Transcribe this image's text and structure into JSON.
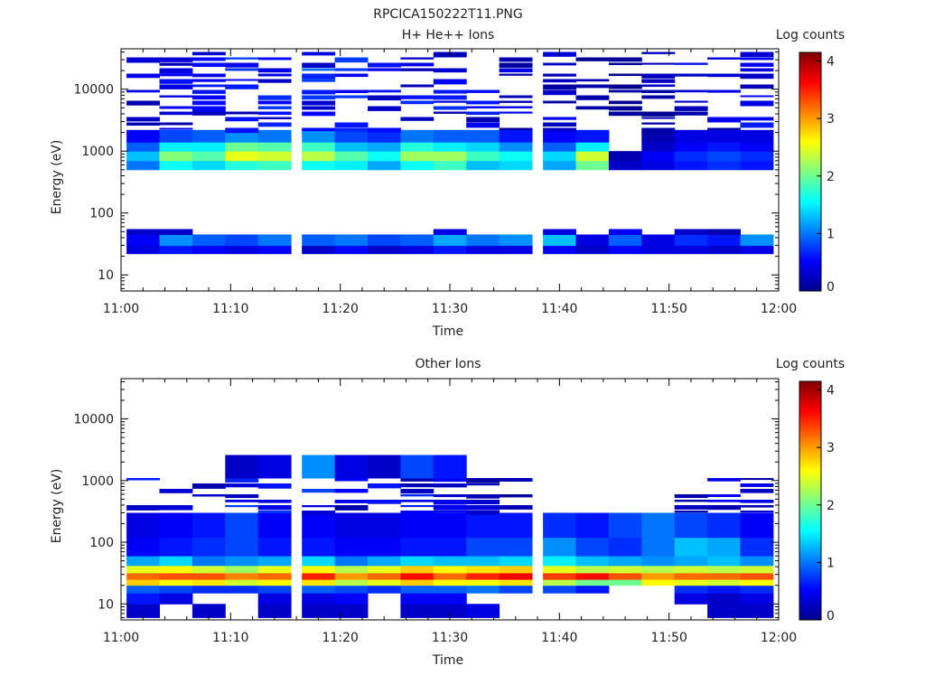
{
  "figure_title": "RPCICA150222T11.PNG",
  "chart_data": [
    {
      "type": "heatmap",
      "title": "H+ He++ Ions",
      "xlabel": "Time",
      "ylabel": "Energy (eV)",
      "colorbar_label": "Log counts",
      "colorbar_ticks": [
        "0",
        "1",
        "2",
        "3",
        "4"
      ],
      "colorbar_range": [
        0,
        4.15
      ],
      "y_scale": "log",
      "ylim": [
        5.5,
        45000
      ],
      "xlim": [
        "11:00",
        "12:00"
      ],
      "x_ticks": [
        "11:00",
        "11:10",
        "11:20",
        "11:30",
        "11:40",
        "11:50",
        "12:00"
      ],
      "y_ticks": [
        "10",
        "100",
        "1000",
        "10000"
      ],
      "time_columns": [
        "11:02",
        "11:05",
        "11:08",
        "11:11",
        "11:14",
        "11:18",
        "11:21",
        "11:24",
        "11:27",
        "11:30",
        "11:33",
        "11:36",
        "11:40",
        "11:43",
        "11:46",
        "11:49",
        "11:52",
        "11:55",
        "11:58"
      ],
      "energy_bands": [
        {
          "energy_range": [
            22,
            30
          ],
          "values": [
            0.4,
            0.6,
            0.5,
            0.4,
            0.5,
            0.3,
            0.5,
            0.3,
            0.4,
            0.6,
            0.4,
            0.4,
            0.5,
            0.3,
            0.5,
            0.4,
            0.4,
            0.3,
            0.4
          ]
        },
        {
          "energy_range": [
            30,
            45
          ],
          "values": [
            0.5,
            1.1,
            0.9,
            0.8,
            1.0,
            0.9,
            1.0,
            0.8,
            0.9,
            1.2,
            1.0,
            1.1,
            1.3,
            0.4,
            0.9,
            0.4,
            0.7,
            0.6,
            1.1
          ]
        },
        {
          "energy_range": [
            45,
            55
          ],
          "values": [
            0.3,
            0.3,
            0.0,
            0.0,
            0.0,
            0.0,
            0.0,
            0.0,
            0.0,
            0.4,
            0.0,
            0.0,
            0.4,
            0.0,
            0.5,
            0.0,
            0.3,
            0.2,
            0.0
          ]
        },
        {
          "energy_range": [
            500,
            700
          ],
          "values": [
            1.0,
            1.6,
            1.4,
            1.7,
            1.8,
            1.6,
            1.5,
            1.2,
            1.6,
            1.8,
            1.3,
            1.4,
            1.2,
            2.0,
            0.3,
            0.4,
            0.6,
            0.7,
            0.6
          ]
        },
        {
          "energy_range": [
            700,
            1000
          ],
          "values": [
            1.3,
            2.1,
            1.9,
            2.5,
            2.4,
            2.3,
            1.9,
            1.6,
            2.2,
            2.2,
            1.8,
            1.6,
            1.4,
            2.4,
            0.2,
            0.5,
            0.7,
            0.8,
            0.7
          ]
        },
        {
          "energy_range": [
            1000,
            1400
          ],
          "values": [
            0.9,
            1.5,
            1.5,
            2.0,
            1.9,
            1.8,
            1.3,
            1.2,
            1.7,
            1.5,
            1.4,
            1.1,
            0.9,
            1.5,
            0.0,
            0.3,
            0.5,
            0.6,
            0.5
          ]
        },
        {
          "energy_range": [
            1400,
            2200
          ],
          "values": [
            0.5,
            0.8,
            0.9,
            1.1,
            1.0,
            1.1,
            0.8,
            0.7,
            1.0,
            0.9,
            0.9,
            0.6,
            0.5,
            0.6,
            0.0,
            0.2,
            0.4,
            0.4,
            0.4
          ]
        },
        {
          "energy_range": [
            2200,
            40000
          ],
          "values": [
            0.3,
            0.4,
            0.4,
            0.5,
            0.5,
            0.6,
            0.5,
            0.4,
            0.5,
            0.5,
            0.4,
            0.3,
            0.3,
            0.2,
            0.1,
            0.2,
            0.3,
            0.3,
            0.4
          ]
        }
      ]
    },
    {
      "type": "heatmap",
      "title": "Other Ions",
      "xlabel": "Time",
      "ylabel": "Energy (eV)",
      "colorbar_label": "Log counts",
      "colorbar_ticks": [
        "0",
        "1",
        "2",
        "3",
        "4"
      ],
      "colorbar_range": [
        0,
        4.15
      ],
      "y_scale": "log",
      "ylim": [
        5.5,
        45000
      ],
      "xlim": [
        "11:00",
        "12:00"
      ],
      "x_ticks": [
        "11:00",
        "11:10",
        "11:20",
        "11:30",
        "11:40",
        "11:50",
        "12:00"
      ],
      "y_ticks": [
        "10",
        "100",
        "1000",
        "10000"
      ],
      "time_columns": [
        "11:02",
        "11:05",
        "11:08",
        "11:11",
        "11:14",
        "11:18",
        "11:21",
        "11:24",
        "11:27",
        "11:30",
        "11:33",
        "11:36",
        "11:40",
        "11:43",
        "11:46",
        "11:49",
        "11:52",
        "11:55",
        "11:58"
      ],
      "energy_bands": [
        {
          "energy_range": [
            6,
            10
          ],
          "values": [
            0.3,
            0.0,
            0.3,
            0.0,
            0.3,
            0.3,
            0.3,
            0.0,
            0.3,
            0.3,
            0.4,
            0.0,
            0.0,
            0.0,
            0.0,
            0.0,
            0.0,
            0.3,
            0.3
          ]
        },
        {
          "energy_range": [
            10,
            15
          ],
          "values": [
            0.6,
            0.4,
            0.0,
            0.0,
            0.4,
            0.4,
            0.5,
            0.0,
            0.5,
            0.5,
            0.0,
            0.0,
            0.0,
            0.0,
            0.0,
            0.0,
            0.4,
            0.3,
            0.4
          ]
        },
        {
          "energy_range": [
            15,
            20
          ],
          "values": [
            0.9,
            0.8,
            0.7,
            0.7,
            0.8,
            0.9,
            0.8,
            0.7,
            0.9,
            0.9,
            1.0,
            0.8,
            0.8,
            0.6,
            0.0,
            0.0,
            0.7,
            0.6,
            0.7
          ]
        },
        {
          "energy_range": [
            20,
            25
          ],
          "values": [
            2.8,
            2.6,
            2.7,
            2.4,
            2.6,
            2.7,
            2.3,
            2.5,
            2.8,
            2.6,
            2.6,
            2.7,
            2.3,
            2.0,
            2.0,
            2.6,
            2.5,
            2.4,
            2.6
          ]
        },
        {
          "energy_range": [
            25,
            32
          ],
          "values": [
            3.2,
            3.3,
            3.3,
            3.1,
            3.2,
            3.5,
            3.0,
            3.2,
            3.6,
            3.2,
            3.5,
            3.7,
            3.4,
            3.6,
            3.3,
            3.0,
            3.2,
            3.2,
            3.3
          ]
        },
        {
          "energy_range": [
            32,
            42
          ],
          "values": [
            2.5,
            2.6,
            2.4,
            2.2,
            2.5,
            2.6,
            2.3,
            2.5,
            2.8,
            2.6,
            2.7,
            2.8,
            2.5,
            2.3,
            2.4,
            2.3,
            2.4,
            2.3,
            2.4
          ]
        },
        {
          "energy_range": [
            42,
            60
          ],
          "values": [
            1.2,
            1.4,
            1.0,
            1.1,
            1.2,
            1.4,
            1.0,
            1.2,
            1.4,
            1.3,
            1.3,
            1.4,
            1.5,
            1.3,
            1.2,
            1.1,
            1.2,
            1.3,
            1.1
          ]
        },
        {
          "energy_range": [
            60,
            120
          ],
          "values": [
            0.5,
            0.6,
            0.7,
            0.8,
            0.6,
            0.6,
            0.5,
            0.5,
            0.6,
            0.6,
            0.8,
            0.8,
            1.1,
            0.8,
            0.7,
            1.0,
            1.3,
            1.2,
            0.7
          ]
        },
        {
          "energy_range": [
            120,
            300
          ],
          "values": [
            0.4,
            0.5,
            0.6,
            0.8,
            0.5,
            0.5,
            0.4,
            0.4,
            0.5,
            0.5,
            0.6,
            0.6,
            0.7,
            0.6,
            0.8,
            1.0,
            0.8,
            0.7,
            0.5
          ]
        },
        {
          "energy_range": [
            300,
            1100
          ],
          "values": [
            0.4,
            0.4,
            0.3,
            0.5,
            0.5,
            0.6,
            0.4,
            0.4,
            0.5,
            0.4,
            0.3,
            0.2,
            0.0,
            0.0,
            0.0,
            0.0,
            0.4,
            0.4,
            0.3
          ]
        },
        {
          "energy_range": [
            1100,
            2600
          ],
          "values": [
            0.0,
            0.0,
            0.0,
            0.3,
            0.4,
            1.1,
            0.4,
            0.3,
            0.8,
            0.6,
            0.0,
            0.0,
            0.0,
            0.0,
            0.0,
            0.0,
            0.0,
            0.0,
            0.0
          ]
        }
      ]
    }
  ]
}
